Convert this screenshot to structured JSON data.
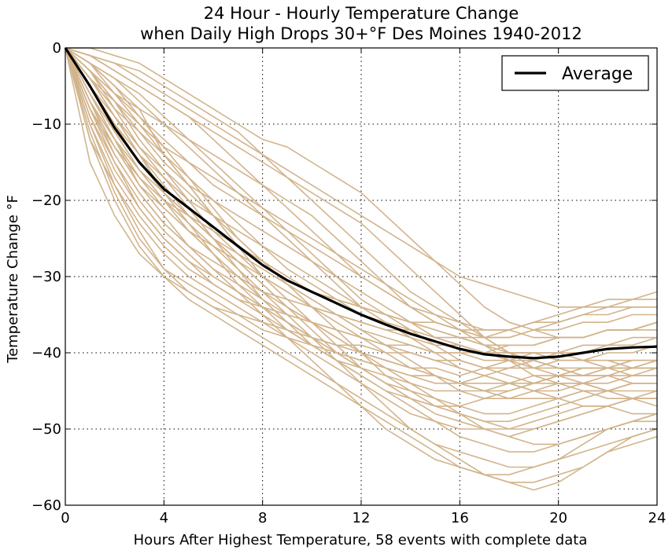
{
  "chart_data": {
    "type": "line",
    "title_line1": "24 Hour - Hourly Temperature Change",
    "title_line2": "when Daily High Drops 30+°F Des Moines 1940-2012",
    "xlabel": "Hours After Highest Temperature, 58 events with complete data",
    "ylabel": "Temperature Change °F",
    "xlim": [
      0,
      24
    ],
    "ylim": [
      -60,
      0
    ],
    "xticks": [
      0,
      4,
      8,
      12,
      16,
      20,
      24
    ],
    "yticks": [
      0,
      -10,
      -20,
      -30,
      -40,
      -50,
      -60
    ],
    "xtick_labels": [
      "0",
      "4",
      "8",
      "12",
      "16",
      "20",
      "24"
    ],
    "ytick_labels": [
      "0",
      "−10",
      "−20",
      "−30",
      "−40",
      "−50",
      "−60"
    ],
    "grid": true,
    "legend": {
      "placement": "top-right",
      "entries": [
        "Average"
      ]
    },
    "colors": {
      "events": "#d2b48c",
      "average": "#000000"
    },
    "x": [
      0,
      1,
      2,
      3,
      4,
      5,
      6,
      7,
      8,
      9,
      10,
      11,
      12,
      13,
      14,
      15,
      16,
      17,
      18,
      19,
      20,
      21,
      22,
      23,
      24
    ],
    "average": [
      0,
      -5,
      -10.5,
      -15,
      -18.5,
      -21,
      -23.5,
      -26,
      -28.5,
      -30.5,
      -32,
      -33.5,
      -35,
      -36.3,
      -37.5,
      -38.5,
      -39.5,
      -40.2,
      -40.5,
      -40.7,
      -40.5,
      -40,
      -39.5,
      -39.3,
      -39.2
    ],
    "events": [
      [
        0,
        -2,
        -5,
        -8,
        -14,
        -18,
        -22,
        -26,
        -28,
        -30,
        -32,
        -33,
        -35,
        -36,
        -37,
        -38,
        -39,
        -40,
        -40,
        -40,
        -41,
        -41,
        -40,
        -40,
        -39
      ],
      [
        0,
        -1,
        -3,
        -5,
        -7,
        -9,
        -12,
        -15,
        -18,
        -21,
        -24,
        -27,
        -30,
        -32,
        -34,
        -36,
        -37,
        -38,
        -38,
        -37,
        -36,
        -35,
        -34,
        -33,
        -33
      ],
      [
        0,
        0,
        -1,
        -2,
        -4,
        -6,
        -8,
        -10,
        -12,
        -13,
        -15,
        -17,
        -19,
        -22,
        -25,
        -28,
        -31,
        -34,
        -36,
        -37,
        -38,
        -38,
        -37,
        -37,
        -36
      ],
      [
        0,
        -8,
        -13,
        -17,
        -20,
        -22,
        -25,
        -27,
        -29,
        -31,
        -33,
        -35,
        -37,
        -39,
        -41,
        -43,
        -45,
        -46,
        -46,
        -45,
        -44,
        -44,
        -45,
        -46,
        -47
      ],
      [
        0,
        -10,
        -18,
        -24,
        -29,
        -32,
        -34,
        -36,
        -38,
        -40,
        -42,
        -44,
        -46,
        -48,
        -50,
        -52,
        -53,
        -54,
        -55,
        -55,
        -54,
        -52,
        -50,
        -49,
        -48
      ],
      [
        0,
        -5,
        -11,
        -16,
        -20,
        -23,
        -26,
        -29,
        -32,
        -35,
        -38,
        -41,
        -44,
        -47,
        -50,
        -52,
        -54,
        -56,
        -57,
        -57,
        -56,
        -55,
        -53,
        -51,
        -50
      ],
      [
        0,
        -3,
        -7,
        -11,
        -15,
        -18,
        -20,
        -22,
        -24,
        -26,
        -28,
        -30,
        -32,
        -34,
        -36,
        -38,
        -39,
        -40,
        -41,
        -42,
        -42,
        -43,
        -43,
        -44,
        -44
      ],
      [
        0,
        -15,
        -22,
        -27,
        -30,
        -32,
        -34,
        -35,
        -36,
        -37,
        -38,
        -39,
        -39,
        -40,
        -40,
        -41,
        -41,
        -42,
        -42,
        -42,
        -41,
        -41,
        -41,
        -42,
        -42
      ],
      [
        0,
        -6,
        -12,
        -18,
        -22,
        -26,
        -29,
        -31,
        -33,
        -35,
        -36,
        -38,
        -40,
        -41,
        -42,
        -42,
        -43,
        -42,
        -41,
        -40,
        -40,
        -39,
        -39,
        -38,
        -38
      ],
      [
        0,
        -2,
        -4,
        -6,
        -9,
        -12,
        -15,
        -18,
        -21,
        -24,
        -27,
        -30,
        -33,
        -35,
        -37,
        -39,
        -41,
        -42,
        -43,
        -44,
        -44,
        -44,
        -43,
        -42,
        -41
      ],
      [
        0,
        -4,
        -9,
        -14,
        -18,
        -22,
        -25,
        -28,
        -31,
        -34,
        -37,
        -40,
        -42,
        -44,
        -46,
        -48,
        -49,
        -50,
        -51,
        -50,
        -49,
        -48,
        -47,
        -46,
        -45
      ],
      [
        0,
        -7,
        -14,
        -19,
        -23,
        -26,
        -28,
        -30,
        -32,
        -33,
        -34,
        -35,
        -36,
        -37,
        -37,
        -38,
        -38,
        -38,
        -37,
        -36,
        -35,
        -34,
        -33,
        -33,
        -32
      ],
      [
        0,
        -3,
        -6,
        -8,
        -10,
        -12,
        -14,
        -16,
        -18,
        -20,
        -22,
        -25,
        -28,
        -31,
        -34,
        -36,
        -37,
        -38,
        -38,
        -37,
        -37,
        -36,
        -36,
        -35,
        -35
      ],
      [
        0,
        -9,
        -16,
        -21,
        -25,
        -28,
        -30,
        -32,
        -34,
        -36,
        -38,
        -40,
        -42,
        -44,
        -45,
        -46,
        -47,
        -48,
        -48,
        -47,
        -46,
        -45,
        -45,
        -44,
        -44
      ],
      [
        0,
        -1,
        -2,
        -3,
        -5,
        -7,
        -9,
        -11,
        -14,
        -17,
        -20,
        -23,
        -26,
        -29,
        -32,
        -34,
        -36,
        -38,
        -40,
        -41,
        -42,
        -43,
        -43,
        -43,
        -42
      ],
      [
        0,
        -5,
        -10,
        -14,
        -17,
        -20,
        -22,
        -24,
        -26,
        -28,
        -30,
        -32,
        -34,
        -35,
        -36,
        -37,
        -38,
        -39,
        -40,
        -40,
        -41,
        -41,
        -42,
        -42,
        -42
      ],
      [
        0,
        -12,
        -20,
        -26,
        -30,
        -33,
        -35,
        -37,
        -39,
        -41,
        -43,
        -45,
        -47,
        -49,
        -51,
        -53,
        -55,
        -56,
        -57,
        -58,
        -57,
        -55,
        -53,
        -52,
        -51
      ],
      [
        0,
        -3,
        -8,
        -13,
        -17,
        -21,
        -25,
        -29,
        -33,
        -36,
        -38,
        -40,
        -41,
        -42,
        -43,
        -44,
        -44,
        -43,
        -42,
        -41,
        -40,
        -40,
        -39,
        -39,
        -38
      ],
      [
        0,
        -6,
        -11,
        -16,
        -20,
        -24,
        -27,
        -30,
        -32,
        -34,
        -36,
        -37,
        -38,
        -39,
        -40,
        -41,
        -42,
        -43,
        -44,
        -45,
        -46,
        -47,
        -47,
        -48,
        -48
      ],
      [
        0,
        -2,
        -5,
        -9,
        -13,
        -17,
        -21,
        -25,
        -28,
        -31,
        -33,
        -35,
        -37,
        -38,
        -39,
        -40,
        -40,
        -40,
        -39,
        -39,
        -38,
        -38,
        -37,
        -37,
        -36
      ],
      [
        0,
        -8,
        -15,
        -21,
        -25,
        -28,
        -31,
        -33,
        -35,
        -37,
        -39,
        -41,
        -43,
        -45,
        -47,
        -49,
        -51,
        -52,
        -53,
        -53,
        -52,
        -51,
        -50,
        -49,
        -49
      ],
      [
        0,
        -4,
        -8,
        -11,
        -14,
        -17,
        -20,
        -23,
        -26,
        -29,
        -31,
        -33,
        -34,
        -35,
        -36,
        -36,
        -37,
        -37,
        -37,
        -36,
        -36,
        -35,
        -35,
        -34,
        -34
      ],
      [
        0,
        -1,
        -3,
        -5,
        -7,
        -9,
        -11,
        -13,
        -15,
        -17,
        -19,
        -21,
        -23,
        -26,
        -29,
        -32,
        -35,
        -38,
        -40,
        -42,
        -43,
        -44,
        -45,
        -45,
        -45
      ],
      [
        0,
        -10,
        -17,
        -22,
        -26,
        -29,
        -31,
        -33,
        -34,
        -35,
        -36,
        -37,
        -38,
        -39,
        -39,
        -40,
        -40,
        -41,
        -41,
        -41,
        -42,
        -42,
        -42,
        -43,
        -43
      ],
      [
        0,
        -5,
        -9,
        -13,
        -16,
        -19,
        -22,
        -25,
        -28,
        -31,
        -34,
        -37,
        -40,
        -43,
        -45,
        -47,
        -48,
        -49,
        -49,
        -48,
        -47,
        -46,
        -45,
        -44,
        -44
      ],
      [
        0,
        -7,
        -13,
        -18,
        -21,
        -24,
        -26,
        -28,
        -30,
        -32,
        -34,
        -36,
        -38,
        -40,
        -42,
        -43,
        -44,
        -45,
        -45,
        -44,
        -43,
        -42,
        -42,
        -41,
        -41
      ],
      [
        0,
        -2,
        -6,
        -10,
        -14,
        -18,
        -22,
        -26,
        -30,
        -33,
        -36,
        -39,
        -42,
        -44,
        -46,
        -47,
        -48,
        -49,
        -50,
        -50,
        -49,
        -48,
        -47,
        -46,
        -46
      ],
      [
        0,
        -3,
        -6,
        -9,
        -12,
        -15,
        -18,
        -20,
        -22,
        -24,
        -26,
        -28,
        -30,
        -32,
        -34,
        -35,
        -36,
        -37,
        -37,
        -38,
        -38,
        -38,
        -37,
        -37,
        -37
      ],
      [
        0,
        -11,
        -19,
        -25,
        -29,
        -31,
        -33,
        -35,
        -37,
        -38,
        -39,
        -40,
        -41,
        -42,
        -43,
        -43,
        -44,
        -44,
        -44,
        -43,
        -43,
        -42,
        -42,
        -41,
        -41
      ],
      [
        0,
        -4,
        -7,
        -10,
        -13,
        -15,
        -17,
        -19,
        -21,
        -23,
        -25,
        -27,
        -29,
        -31,
        -33,
        -35,
        -37,
        -39,
        -41,
        -43,
        -44,
        -45,
        -46,
        -46,
        -46
      ],
      [
        0,
        -6,
        -12,
        -17,
        -21,
        -24,
        -27,
        -30,
        -33,
        -36,
        -39,
        -41,
        -43,
        -45,
        -46,
        -47,
        -47,
        -46,
        -45,
        -44,
        -43,
        -43,
        -42,
        -42,
        -41
      ],
      [
        0,
        -1,
        -2,
        -4,
        -6,
        -8,
        -10,
        -12,
        -14,
        -16,
        -18,
        -20,
        -22,
        -24,
        -26,
        -28,
        -30,
        -31,
        -32,
        -33,
        -34,
        -34,
        -34,
        -34,
        -34
      ],
      [
        0,
        -8,
        -14,
        -19,
        -23,
        -26,
        -29,
        -32,
        -35,
        -38,
        -41,
        -44,
        -47,
        -50,
        -52,
        -54,
        -55,
        -56,
        -56,
        -55,
        -54,
        -53,
        -52,
        -51,
        -50
      ],
      [
        0,
        -3,
        -7,
        -12,
        -16,
        -20,
        -24,
        -27,
        -30,
        -32,
        -34,
        -35,
        -36,
        -37,
        -38,
        -39,
        -39,
        -40,
        -40,
        -40,
        -40,
        -41,
        -41,
        -41,
        -41
      ],
      [
        0,
        -9,
        -15,
        -20,
        -24,
        -27,
        -30,
        -32,
        -34,
        -36,
        -38,
        -39,
        -40,
        -41,
        -42,
        -43,
        -44,
        -45,
        -46,
        -46,
        -46,
        -45,
        -45,
        -44,
        -44
      ],
      [
        0,
        -2,
        -4,
        -7,
        -10,
        -13,
        -16,
        -19,
        -22,
        -25,
        -28,
        -31,
        -34,
        -36,
        -38,
        -40,
        -42,
        -43,
        -44,
        -45,
        -45,
        -44,
        -44,
        -43,
        -43
      ],
      [
        0,
        -5,
        -10,
        -15,
        -19,
        -22,
        -25,
        -28,
        -31,
        -34,
        -36,
        -38,
        -40,
        -42,
        -44,
        -46,
        -48,
        -50,
        -51,
        -52,
        -52,
        -51,
        -50,
        -49,
        -48
      ],
      [
        0,
        -7,
        -12,
        -16,
        -19,
        -22,
        -24,
        -26,
        -28,
        -30,
        -32,
        -33,
        -34,
        -35,
        -36,
        -37,
        -38,
        -39,
        -39,
        -39,
        -38,
        -38,
        -37,
        -37,
        -36
      ],
      [
        0,
        -4,
        -9,
        -14,
        -19,
        -23,
        -27,
        -31,
        -34,
        -37,
        -39,
        -41,
        -42,
        -43,
        -44,
        -45,
        -45,
        -45,
        -44,
        -44,
        -43,
        -43,
        -42,
        -42,
        -42
      ],
      [
        0,
        -12,
        -18,
        -23,
        -27,
        -30,
        -32,
        -34,
        -36,
        -38,
        -40,
        -42,
        -44,
        -46,
        -48,
        -49,
        -50,
        -50,
        -50,
        -49,
        -48,
        -47,
        -47,
        -46,
        -46
      ]
    ]
  }
}
